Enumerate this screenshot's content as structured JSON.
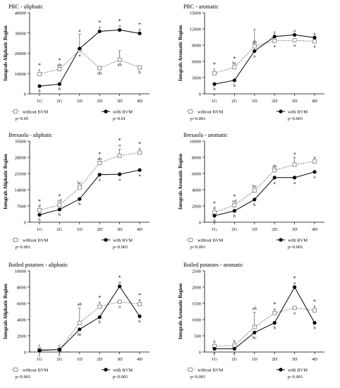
{
  "chart_data": [
    {
      "type": "line",
      "title": "PRC - aliphatic",
      "ylabel": "Integrals Aliphatic Region",
      "categories": [
        "1G",
        "2G",
        "1D",
        "2D",
        "3D",
        "4D"
      ],
      "ylim": [
        0,
        40000
      ],
      "yticks": [
        0,
        10000,
        20000,
        30000,
        40000
      ],
      "series": [
        {
          "name": "without BVM",
          "values": [
            9800,
            12200,
            21500,
            12700,
            16800,
            13000
          ],
          "errors": [
            0,
            0,
            0,
            0,
            4500,
            0
          ],
          "letters": [
            "c",
            "ab",
            "a",
            "ab",
            "ab",
            "b"
          ]
        },
        {
          "name": "with BVM",
          "values": [
            3800,
            4800,
            22300,
            30800,
            31500,
            29800
          ],
          "errors": [
            0,
            0,
            7000,
            0,
            0,
            0
          ],
          "letters": [
            "b",
            "b",
            "a",
            "a",
            "a",
            "a"
          ]
        }
      ],
      "stars": [
        "*",
        "*",
        "",
        "*",
        "*",
        "*"
      ],
      "pvalues": [
        "p<0.05",
        "p<0.01"
      ]
    },
    {
      "type": "line",
      "title": "PRC - aromatic",
      "ylabel": "Integrals Aromatic Region",
      "categories": [
        "1G",
        "2G",
        "1D",
        "2D",
        "3D",
        "4D"
      ],
      "ylim": [
        0,
        15000
      ],
      "yticks": [
        0,
        3000,
        6000,
        9000,
        12000,
        15000
      ],
      "series": [
        {
          "name": "without BVM",
          "values": [
            3800,
            4900,
            8800,
            9800,
            9900,
            9700
          ],
          "errors": [
            0,
            0,
            0,
            0,
            0,
            0
          ],
          "letters": [
            "c",
            "bc",
            "ab",
            "a",
            "a",
            "a"
          ]
        },
        {
          "name": "with BVM",
          "values": [
            1800,
            2500,
            7900,
            10600,
            10900,
            10400
          ],
          "errors": [
            0,
            0,
            4000,
            0,
            0,
            0
          ],
          "letters": [
            "b",
            "b",
            "a",
            "a",
            "a",
            "a"
          ]
        }
      ],
      "stars": [
        "*",
        "*",
        "",
        "",
        "",
        ""
      ],
      "pvalues": [
        "p<0.001",
        "p<0.001"
      ]
    },
    {
      "type": "line",
      "title": "Bresaola - aliphatic",
      "ylabel": "Integrals Aliphatic Region",
      "categories": [
        "1G",
        "2G",
        "1D",
        "2D",
        "3D",
        "4D"
      ],
      "ylim": [
        0,
        35000
      ],
      "yticks": [
        0,
        7000,
        14000,
        21000,
        28000,
        35000
      ],
      "series": [
        {
          "name": "without BVM",
          "values": [
            5200,
            7400,
            15000,
            25600,
            28700,
            30000
          ],
          "errors": [
            0,
            0,
            0,
            0,
            2800,
            0
          ],
          "letters": [
            "d",
            "cd",
            "bc",
            "ab",
            "a",
            "a"
          ]
        },
        {
          "name": "with BVM",
          "values": [
            3200,
            5500,
            10000,
            20500,
            20700,
            22500
          ],
          "errors": [
            0,
            0,
            0,
            0,
            0,
            0
          ],
          "letters": [
            "b",
            "b",
            "b",
            "a",
            "a",
            "a"
          ]
        }
      ],
      "stars": [
        "*",
        "*",
        "",
        "*",
        "*",
        "*"
      ],
      "pvalues": [
        "p<0.001",
        "p<0.001"
      ]
    },
    {
      "type": "line",
      "title": "Bresaola - aromatic",
      "ylabel": "Integrals Aromatic Region",
      "categories": [
        "1G",
        "2G",
        "1D",
        "2D",
        "3D",
        "4D"
      ],
      "ylim": [
        0,
        10000
      ],
      "yticks": [
        0,
        2000,
        4000,
        6000,
        8000,
        10000
      ],
      "series": [
        {
          "name": "without BVM",
          "values": [
            1200,
            2100,
            3900,
            6400,
            7100,
            7500
          ],
          "errors": [
            0,
            0,
            0,
            0,
            900,
            0
          ],
          "letters": [
            "d",
            "cd",
            "bc",
            "ab",
            "a",
            "a"
          ]
        },
        {
          "name": "with BVM",
          "values": [
            800,
            1400,
            2800,
            5500,
            5500,
            6200
          ],
          "errors": [
            0,
            0,
            0,
            0,
            0,
            0
          ],
          "letters": [
            "b",
            "b",
            "b",
            "a",
            "a",
            "a"
          ]
        }
      ],
      "stars": [
        "*",
        "*",
        "",
        "",
        "",
        ""
      ],
      "pvalues": [
        "p<0.001",
        "p<0.001"
      ]
    },
    {
      "type": "line",
      "title": "Boiled potatoes - aliphatic",
      "ylabel": "Integrals Aliphatic Region",
      "categories": [
        "1G",
        "2G",
        "1D",
        "2D",
        "3D",
        "4D"
      ],
      "ylim": [
        0,
        10000
      ],
      "yticks": [
        0,
        2000,
        4000,
        6000,
        8000,
        10000
      ],
      "series": [
        {
          "name": "without BVM",
          "values": [
            300,
            300,
            3600,
            5600,
            6200,
            5900
          ],
          "errors": [
            0,
            0,
            1800,
            0,
            0,
            0
          ],
          "letters": [
            "c",
            "c",
            "ab",
            "a",
            "a",
            "a"
          ]
        },
        {
          "name": "with BVM",
          "values": [
            200,
            300,
            2800,
            4300,
            8100,
            4400
          ],
          "errors": [
            0,
            0,
            0,
            0,
            0,
            0
          ],
          "letters": [
            "c",
            "c",
            "bc",
            "b",
            "a",
            "b"
          ]
        }
      ],
      "stars": [
        "",
        "",
        "",
        "*",
        "*",
        "*"
      ],
      "pvalues": [
        "p<0.001",
        "p<0.001"
      ]
    },
    {
      "type": "line",
      "title": "Boiled potatoes - aromatic",
      "ylabel": "Integrals Aromatic Region",
      "categories": [
        "1G",
        "2G",
        "1D",
        "2D",
        "3D",
        "4D"
      ],
      "ylim": [
        0,
        2500
      ],
      "yticks": [
        0,
        500,
        1000,
        1500,
        2000,
        2500
      ],
      "series": [
        {
          "name": "without BVM",
          "values": [
            180,
            200,
            770,
            1200,
            1360,
            1280
          ],
          "errors": [
            0,
            0,
            450,
            0,
            0,
            0
          ],
          "letters": [
            "b",
            "b",
            "ab",
            "a",
            "a",
            "a"
          ]
        },
        {
          "name": "with BVM",
          "values": [
            100,
            100,
            600,
            900,
            2000,
            900
          ],
          "errors": [
            0,
            0,
            0,
            0,
            0,
            0
          ],
          "letters": [
            "c",
            "c",
            "bc",
            "b",
            "a",
            "b"
          ]
        }
      ],
      "stars": [
        "",
        "",
        "",
        "*",
        "*",
        "*"
      ],
      "pvalues": [
        "p<0.001",
        "p<0.001"
      ]
    }
  ]
}
